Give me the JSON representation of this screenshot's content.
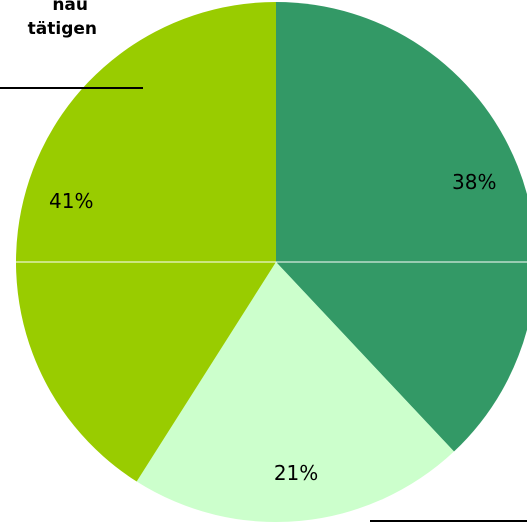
{
  "chart_data": {
    "type": "pie",
    "title_lines": [
      "nau",
      "tätigen"
    ],
    "categories": [
      null,
      null,
      null
    ],
    "values": [
      38,
      21,
      41
    ],
    "value_labels": [
      "38%",
      "21%",
      "41%"
    ],
    "colors": [
      "#339966",
      "#ccffcc",
      "#99cc00"
    ]
  }
}
